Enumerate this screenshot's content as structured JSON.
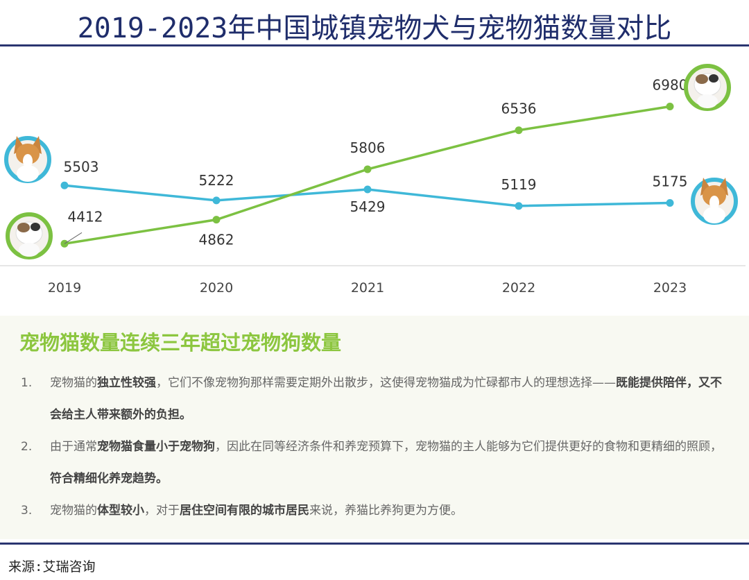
{
  "title": "2019-2023年中国城镇宠物犬与宠物猫数量对比",
  "chart_data": {
    "type": "line",
    "categories": [
      "2019",
      "2020",
      "2021",
      "2022",
      "2023"
    ],
    "ylim": [
      4000,
      8000
    ],
    "grid": false,
    "series": [
      {
        "key": "dog",
        "values": [
          5503,
          5222,
          5429,
          5119,
          5175
        ],
        "color": "#3fb8d8",
        "icon": "dog-photo-icon"
      },
      {
        "key": "cat",
        "values": [
          4412,
          4862,
          5806,
          6536,
          6980
        ],
        "color": "#7cc142",
        "icon": "cat-photo-icon"
      }
    ]
  },
  "panel": {
    "heading": "宠物猫数量连续三年超过宠物狗数量",
    "items": [
      {
        "num": "1.",
        "parts": [
          [
            "宠物猫的",
            0
          ],
          [
            "独立性较强",
            1
          ],
          [
            "，它们不像宠物狗那样需要定期外出散步，这使得宠物猫成为忙碌都市人的理想选择——",
            0
          ],
          [
            "既能提供陪伴，又不会给主人带来额外的负担。",
            1
          ]
        ]
      },
      {
        "num": "2.",
        "parts": [
          [
            "由于通常",
            0
          ],
          [
            "宠物猫食量小于宠物狗",
            1
          ],
          [
            "，因此在同等经济条件和养宠预算下，宠物猫的主人能够为它们提供更好的食物和更精细的照顾，",
            0
          ],
          [
            "符合精细化养宠趋势。",
            1
          ]
        ]
      },
      {
        "num": "3.",
        "parts": [
          [
            "宠物猫的",
            0
          ],
          [
            "体型较小",
            1
          ],
          [
            "，对于",
            0
          ],
          [
            "居住空间有限的城市居民",
            1
          ],
          [
            "来说，养猫比养狗更为方便。",
            0
          ]
        ]
      }
    ]
  },
  "source": "来源:艾瑞咨询"
}
